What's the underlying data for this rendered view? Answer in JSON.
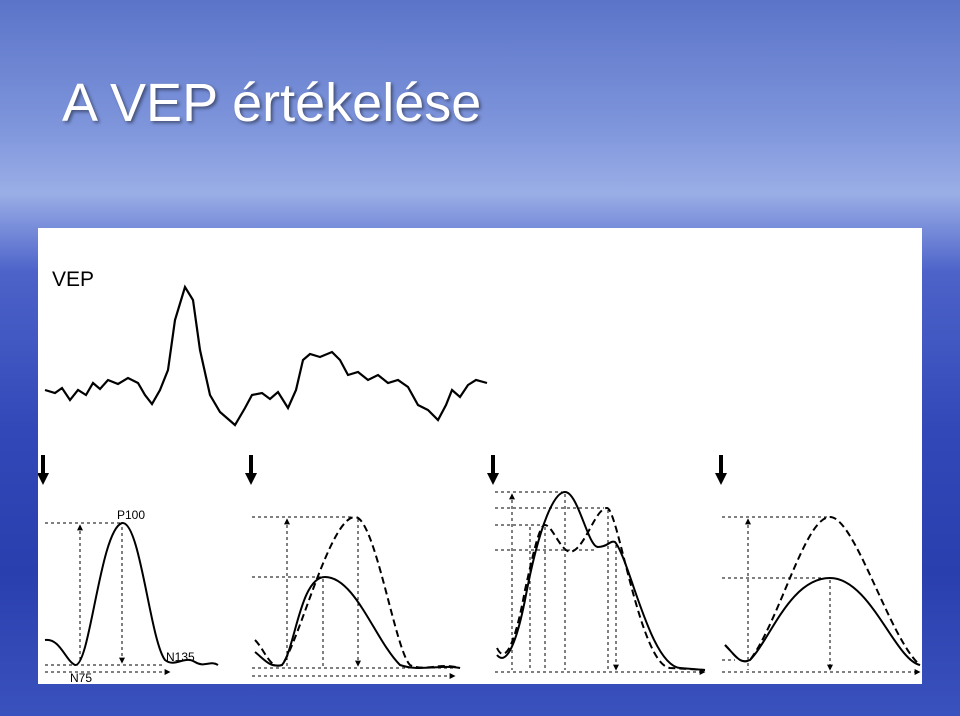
{
  "slide": {
    "title": "A VEP értékelése"
  },
  "figure": {
    "label": "VEP",
    "peaks": [
      "P100",
      "N135",
      "N75"
    ]
  }
}
